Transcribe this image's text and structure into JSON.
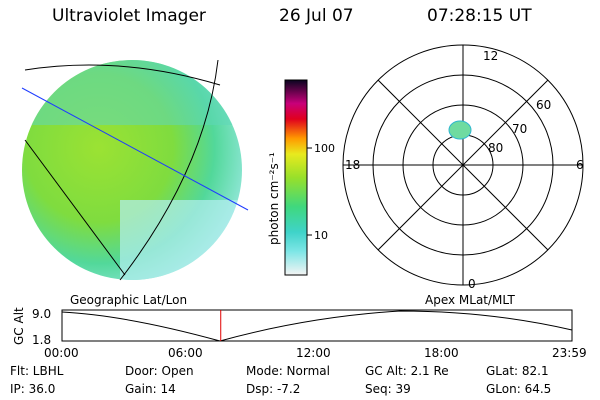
{
  "header": {
    "title": "Ultraviolet Imager",
    "date": "26 Jul 07",
    "time": "07:28:15 UT"
  },
  "colorbar": {
    "unit_label": "photon cm⁻²s⁻¹",
    "ticks": [
      "100",
      "10"
    ]
  },
  "polar_plot": {
    "hour_labels": {
      "top": "12",
      "left": "18",
      "right": "6",
      "bottom": "0"
    },
    "lat_labels": [
      "60",
      "70",
      "80"
    ]
  },
  "timeline": {
    "left_label": "Geographic Lat/Lon",
    "right_label": "Apex MLat/MLT",
    "axis_title": "GC Alt",
    "y_top": "9.0",
    "y_bottom": "1.8",
    "x_ticks": [
      "00:00",
      "06:00",
      "12:00",
      "18:00",
      "23:59"
    ],
    "marker_time_hours": 7.47
  },
  "info": {
    "flt": "Flt: LBHL",
    "ip": "IP: 36.0",
    "door": "Door: Open",
    "gain": "Gain: 14",
    "mode": "Mode: Normal",
    "dsp": "Dsp:    -7.2",
    "gcalt": "GC Alt: 2.1 Re",
    "seq": "Seq: 39",
    "glat": "GLat:  82.1",
    "glon": "GLon:  64.5"
  }
}
